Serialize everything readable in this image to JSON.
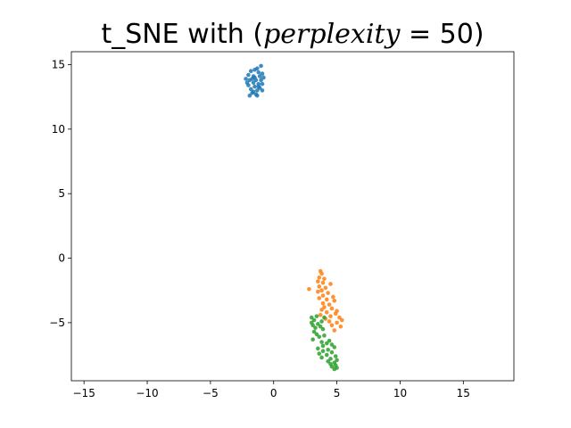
{
  "chart_data": {
    "type": "scatter",
    "title": {
      "prefix": "t_SNE with (",
      "math_var": "perplexity",
      "math_eq": " = 50",
      "suffix": ")"
    },
    "xlabel": "",
    "ylabel": "",
    "xlim": [
      -16,
      19
    ],
    "ylim": [
      -9.5,
      16
    ],
    "xticks": [
      -15,
      -10,
      -5,
      0,
      5,
      10,
      15
    ],
    "yticks": [
      -5,
      0,
      5,
      10,
      15
    ],
    "grid": false,
    "series": [
      {
        "color": "#1f77b4",
        "points": [
          [
            -1.0,
            14.9
          ],
          [
            -1.3,
            14.7
          ],
          [
            -1.5,
            14.6
          ],
          [
            -1.8,
            14.5
          ],
          [
            -1.2,
            14.4
          ],
          [
            -0.9,
            14.3
          ],
          [
            -2.0,
            14.2
          ],
          [
            -1.6,
            14.1
          ],
          [
            -1.1,
            14.1
          ],
          [
            -0.8,
            14.0
          ],
          [
            -2.2,
            13.9
          ],
          [
            -1.7,
            13.9
          ],
          [
            -1.4,
            13.8
          ],
          [
            -1.0,
            13.8
          ],
          [
            -2.1,
            13.6
          ],
          [
            -1.6,
            13.6
          ],
          [
            -1.2,
            13.5
          ],
          [
            -0.9,
            13.5
          ],
          [
            -2.0,
            13.4
          ],
          [
            -1.5,
            13.3
          ],
          [
            -1.1,
            13.2
          ],
          [
            -1.8,
            13.1
          ],
          [
            -1.3,
            13.0
          ],
          [
            -0.9,
            13.0
          ],
          [
            -1.7,
            12.8
          ],
          [
            -1.4,
            12.7
          ],
          [
            -1.9,
            12.6
          ],
          [
            -1.3,
            12.6
          ],
          [
            -1.5,
            14.0
          ],
          [
            -1.9,
            13.8
          ],
          [
            -1.2,
            13.3
          ],
          [
            -1.6,
            12.9
          ]
        ]
      },
      {
        "color": "#ff7f0e",
        "points": [
          [
            3.7,
            -1.0
          ],
          [
            3.8,
            -1.2
          ],
          [
            3.6,
            -1.5
          ],
          [
            4.0,
            -1.6
          ],
          [
            3.5,
            -1.8
          ],
          [
            3.9,
            -1.9
          ],
          [
            4.5,
            -2.0
          ],
          [
            3.6,
            -2.2
          ],
          [
            4.1,
            -2.3
          ],
          [
            3.8,
            -2.5
          ],
          [
            3.5,
            -2.6
          ],
          [
            4.3,
            -2.7
          ],
          [
            3.9,
            -2.9
          ],
          [
            4.7,
            -3.0
          ],
          [
            3.6,
            -3.1
          ],
          [
            4.2,
            -3.2
          ],
          [
            4.8,
            -3.3
          ],
          [
            3.9,
            -3.5
          ],
          [
            4.4,
            -3.6
          ],
          [
            4.0,
            -3.8
          ],
          [
            4.6,
            -3.9
          ],
          [
            3.8,
            -4.0
          ],
          [
            5.0,
            -4.1
          ],
          [
            4.2,
            -4.2
          ],
          [
            4.9,
            -4.3
          ],
          [
            3.7,
            -4.4
          ],
          [
            4.5,
            -4.5
          ],
          [
            5.2,
            -4.6
          ],
          [
            4.1,
            -4.7
          ],
          [
            5.4,
            -4.8
          ],
          [
            4.4,
            -4.9
          ],
          [
            5.0,
            -5.0
          ],
          [
            4.6,
            -5.2
          ],
          [
            5.3,
            -5.3
          ],
          [
            4.8,
            -5.6
          ],
          [
            2.8,
            -2.4
          ]
        ]
      },
      {
        "color": "#2ca02c",
        "points": [
          [
            3.0,
            -4.6
          ],
          [
            3.4,
            -4.5
          ],
          [
            4.0,
            -4.6
          ],
          [
            3.2,
            -4.8
          ],
          [
            3.8,
            -4.9
          ],
          [
            3.0,
            -5.0
          ],
          [
            3.5,
            -5.1
          ],
          [
            3.1,
            -5.2
          ],
          [
            3.7,
            -5.3
          ],
          [
            3.3,
            -5.4
          ],
          [
            3.9,
            -5.5
          ],
          [
            3.2,
            -5.7
          ],
          [
            3.4,
            -5.9
          ],
          [
            4.0,
            -6.0
          ],
          [
            3.6,
            -6.1
          ],
          [
            3.1,
            -6.3
          ],
          [
            4.4,
            -6.4
          ],
          [
            3.8,
            -6.5
          ],
          [
            4.2,
            -6.6
          ],
          [
            4.6,
            -6.7
          ],
          [
            3.9,
            -6.8
          ],
          [
            4.8,
            -6.9
          ],
          [
            3.5,
            -7.0
          ],
          [
            4.3,
            -7.1
          ],
          [
            3.9,
            -7.2
          ],
          [
            4.6,
            -7.3
          ],
          [
            3.6,
            -7.4
          ],
          [
            4.2,
            -7.5
          ],
          [
            4.9,
            -7.6
          ],
          [
            3.8,
            -7.7
          ],
          [
            4.5,
            -7.8
          ],
          [
            5.0,
            -7.9
          ],
          [
            4.3,
            -8.0
          ],
          [
            4.8,
            -8.1
          ],
          [
            4.5,
            -8.2
          ],
          [
            4.9,
            -8.3
          ],
          [
            4.6,
            -8.4
          ],
          [
            5.0,
            -8.5
          ],
          [
            4.8,
            -8.6
          ]
        ]
      }
    ]
  }
}
